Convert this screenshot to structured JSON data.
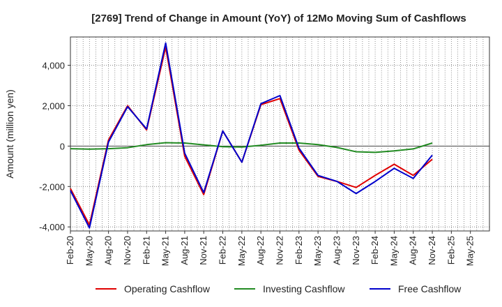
{
  "chart_data": {
    "type": "line",
    "title": "[2769]  Trend of Change in Amount (YoY) of 12Mo Moving Sum of Cashflows",
    "xlabel": "",
    "ylabel": "Amount (million yen)",
    "ylim": [
      -4200,
      5400
    ],
    "yticks": [
      -4000,
      -2000,
      0,
      2000,
      4000
    ],
    "ytick_labels": [
      "-4,000",
      "-2,000",
      "0",
      "2,000",
      "4,000"
    ],
    "grid": true,
    "legend_position": "bottom",
    "categories": [
      "Feb-20",
      "May-20",
      "Aug-20",
      "Nov-20",
      "Feb-21",
      "May-21",
      "Aug-21",
      "Nov-21",
      "Feb-22",
      "May-22",
      "Aug-22",
      "Nov-22",
      "Feb-23",
      "May-23",
      "Aug-23",
      "Nov-23",
      "Feb-24",
      "May-24",
      "Aug-24",
      "Nov-24",
      "Feb-25",
      "May-25"
    ],
    "series": [
      {
        "name": "Operating Cashflow",
        "color": "#e00000",
        "values": [
          -2100,
          -3900,
          300,
          2000,
          800,
          4900,
          -500,
          -2400,
          750,
          -800,
          2050,
          2350,
          -200,
          -1500,
          -1750,
          -2050,
          -1450,
          -900,
          -1450,
          -650,
          null,
          null
        ]
      },
      {
        "name": "Investing Cashflow",
        "color": "#228B22",
        "values": [
          -130,
          -150,
          -130,
          -80,
          70,
          170,
          150,
          60,
          -30,
          -50,
          40,
          150,
          150,
          70,
          -70,
          -280,
          -310,
          -240,
          -140,
          150,
          null,
          null
        ]
      },
      {
        "name": "Free Cashflow",
        "color": "#0000cc",
        "values": [
          -2200,
          -4050,
          200,
          1950,
          850,
          5100,
          -350,
          -2300,
          750,
          -800,
          2100,
          2500,
          -100,
          -1450,
          -1750,
          -2350,
          -1750,
          -1100,
          -1600,
          -450,
          null,
          null
        ]
      }
    ]
  }
}
